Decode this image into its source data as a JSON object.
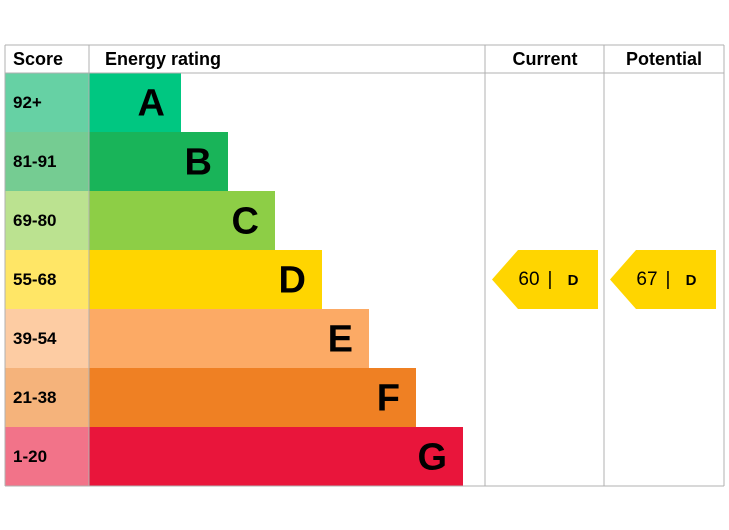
{
  "header": {
    "score": "Score",
    "rating": "Energy rating",
    "current": "Current",
    "potential": "Potential"
  },
  "bands": [
    {
      "score": "92+",
      "letter": "A",
      "color": "#00c781",
      "light": "#66d1a4"
    },
    {
      "score": "81-91",
      "letter": "B",
      "color": "#19b459",
      "light": "#75cc92"
    },
    {
      "score": "69-80",
      "letter": "C",
      "color": "#8dce46",
      "light": "#bbe290"
    },
    {
      "score": "55-68",
      "letter": "D",
      "color": "#ffd500",
      "light": "#ffe666"
    },
    {
      "score": "39-54",
      "letter": "E",
      "color": "#fcaa65",
      "light": "#fdcca3"
    },
    {
      "score": "21-38",
      "letter": "F",
      "color": "#ef8023",
      "light": "#f5b37b"
    },
    {
      "score": "1-20",
      "letter": "G",
      "color": "#e9153b",
      "light": "#f27389"
    }
  ],
  "current": {
    "value": 60,
    "separator": "|",
    "band": "D"
  },
  "potential": {
    "value": 67,
    "separator": "|",
    "band": "D"
  }
}
